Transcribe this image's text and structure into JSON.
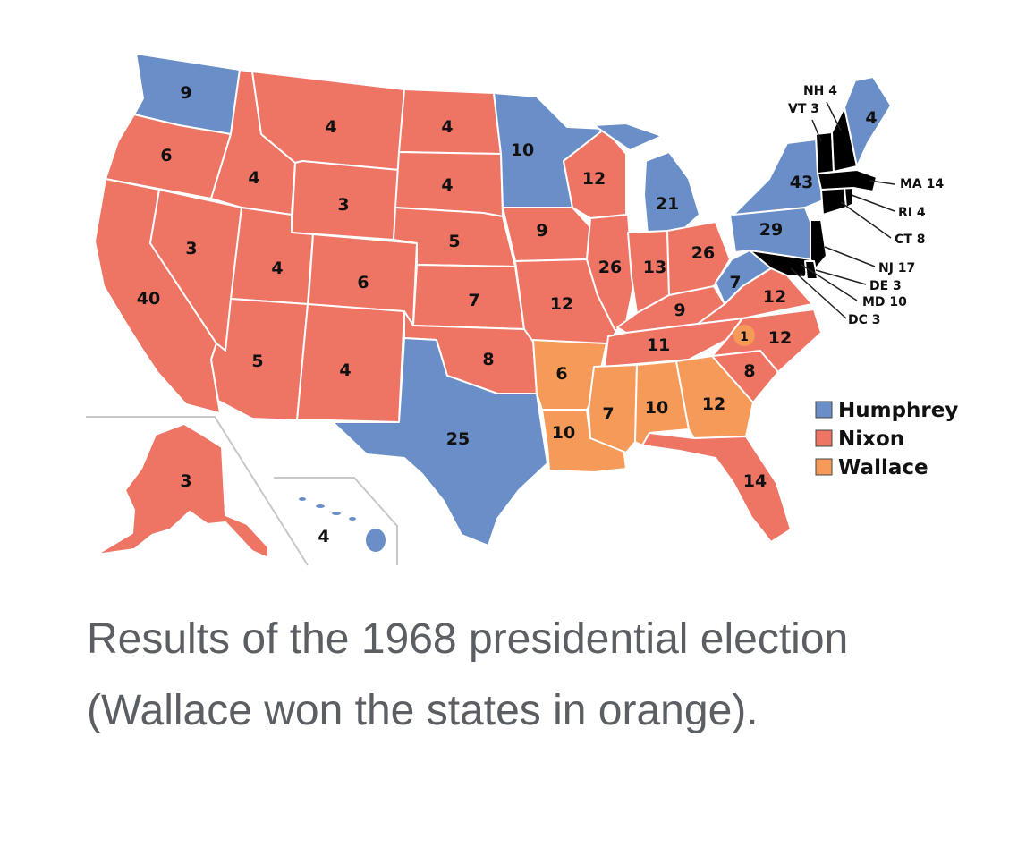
{
  "colors": {
    "Humphrey": "#6a8ec8",
    "Nixon": "#ee7464",
    "Wallace": "#f59a58",
    "border": "#ffffff"
  },
  "legend": [
    {
      "name": "Humphrey",
      "color": "#6a8ec8"
    },
    {
      "name": "Nixon",
      "color": "#ee7464"
    },
    {
      "name": "Wallace",
      "color": "#f59a58"
    }
  ],
  "states": {
    "WA": {
      "votes": "9",
      "winner": "Humphrey"
    },
    "OR": {
      "votes": "6",
      "winner": "Nixon"
    },
    "CA": {
      "votes": "40",
      "winner": "Nixon"
    },
    "NV": {
      "votes": "3",
      "winner": "Nixon"
    },
    "ID": {
      "votes": "4",
      "winner": "Nixon"
    },
    "MT": {
      "votes": "4",
      "winner": "Nixon"
    },
    "WY": {
      "votes": "3",
      "winner": "Nixon"
    },
    "UT": {
      "votes": "4",
      "winner": "Nixon"
    },
    "CO": {
      "votes": "6",
      "winner": "Nixon"
    },
    "AZ": {
      "votes": "5",
      "winner": "Nixon"
    },
    "NM": {
      "votes": "4",
      "winner": "Nixon"
    },
    "ND": {
      "votes": "4",
      "winner": "Nixon"
    },
    "SD": {
      "votes": "4",
      "winner": "Nixon"
    },
    "NE": {
      "votes": "5",
      "winner": "Nixon"
    },
    "KS": {
      "votes": "7",
      "winner": "Nixon"
    },
    "OK": {
      "votes": "8",
      "winner": "Nixon"
    },
    "TX": {
      "votes": "25",
      "winner": "Humphrey"
    },
    "MN": {
      "votes": "10",
      "winner": "Humphrey"
    },
    "IA": {
      "votes": "9",
      "winner": "Nixon"
    },
    "MO": {
      "votes": "12",
      "winner": "Nixon"
    },
    "AR": {
      "votes": "6",
      "winner": "Wallace"
    },
    "LA": {
      "votes": "10",
      "winner": "Wallace"
    },
    "WI": {
      "votes": "12",
      "winner": "Nixon"
    },
    "IL": {
      "votes": "26",
      "winner": "Nixon"
    },
    "MI": {
      "votes": "21",
      "winner": "Humphrey"
    },
    "IN": {
      "votes": "13",
      "winner": "Nixon"
    },
    "OH": {
      "votes": "26",
      "winner": "Nixon"
    },
    "KY": {
      "votes": "9",
      "winner": "Nixon"
    },
    "TN": {
      "votes": "11",
      "winner": "Nixon"
    },
    "MS": {
      "votes": "7",
      "winner": "Wallace"
    },
    "AL": {
      "votes": "10",
      "winner": "Wallace"
    },
    "GA": {
      "votes": "12",
      "winner": "Wallace"
    },
    "FL": {
      "votes": "14",
      "winner": "Nixon"
    },
    "SC": {
      "votes": "8",
      "winner": "Nixon"
    },
    "NC": {
      "votes": "12",
      "winner": "Nixon"
    },
    "NC_faithless": {
      "votes": "1",
      "winner": "Wallace"
    },
    "VA": {
      "votes": "12",
      "winner": "Nixon"
    },
    "WV": {
      "votes": "7",
      "winner": "Humphrey"
    },
    "PA": {
      "votes": "29",
      "winner": "Humphrey"
    },
    "NY": {
      "votes": "43",
      "winner": "Humphrey"
    },
    "ME": {
      "votes": "4",
      "winner": "Humphrey"
    },
    "AK": {
      "votes": "3",
      "winner": "Nixon"
    },
    "HI": {
      "votes": "4",
      "winner": "Humphrey"
    }
  },
  "callouts": {
    "NH": "NH 4",
    "VT": "VT 3",
    "MA": "MA 14",
    "RI": "RI 4",
    "CT": "CT 8",
    "NJ": "NJ 17",
    "DE": "DE 3",
    "MD": "MD 10",
    "DC": "DC 3"
  },
  "caption": "Results of the 1968 presidential election (Wallace won the states in orange)."
}
